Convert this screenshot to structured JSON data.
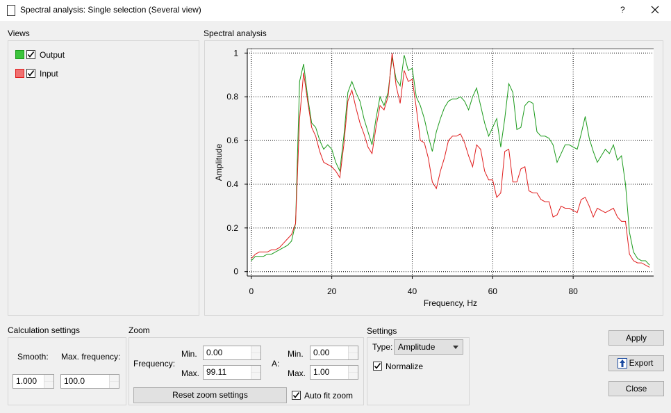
{
  "window": {
    "title": "Spectral analysis: Single selection (Several view)",
    "help": "?"
  },
  "views": {
    "title": "Views",
    "checked": [
      true,
      true
    ]
  },
  "chart_data": {
    "type": "line",
    "title": "Spectral analysis",
    "x_label": "Frequency, Hz",
    "y_label": "Amplitude",
    "x": [
      0,
      1,
      2,
      3,
      4,
      5,
      6,
      7,
      8,
      9,
      10,
      11,
      12,
      13,
      14,
      15,
      16,
      17,
      18,
      19,
      20,
      21,
      22,
      23,
      24,
      25,
      26,
      27,
      28,
      29,
      30,
      31,
      32,
      33,
      34,
      35,
      36,
      37,
      38,
      39,
      40,
      41,
      42,
      43,
      44,
      45,
      46,
      47,
      48,
      49,
      50,
      51,
      52,
      53,
      54,
      55,
      56,
      57,
      58,
      59,
      60,
      61,
      62,
      63,
      64,
      65,
      66,
      67,
      68,
      69,
      70,
      71,
      72,
      73,
      74,
      75,
      76,
      77,
      78,
      79,
      80,
      81,
      82,
      83,
      84,
      85,
      86,
      87,
      88,
      89,
      90,
      91,
      92,
      93,
      94,
      95,
      96,
      97,
      98,
      99
    ],
    "series": [
      {
        "name": "Output",
        "color": "#1a9a1a",
        "swatch": "#3cc43c",
        "values": [
          0.05,
          0.07,
          0.07,
          0.07,
          0.08,
          0.08,
          0.09,
          0.1,
          0.11,
          0.12,
          0.14,
          0.22,
          0.87,
          0.95,
          0.8,
          0.68,
          0.66,
          0.6,
          0.56,
          0.58,
          0.56,
          0.5,
          0.46,
          0.62,
          0.82,
          0.87,
          0.82,
          0.78,
          0.7,
          0.64,
          0.58,
          0.7,
          0.8,
          0.76,
          0.82,
          0.98,
          0.88,
          0.85,
          0.99,
          0.92,
          0.93,
          0.8,
          0.76,
          0.7,
          0.62,
          0.55,
          0.64,
          0.7,
          0.75,
          0.78,
          0.79,
          0.79,
          0.8,
          0.78,
          0.74,
          0.8,
          0.84,
          0.76,
          0.68,
          0.62,
          0.66,
          0.7,
          0.57,
          0.7,
          0.86,
          0.82,
          0.65,
          0.66,
          0.76,
          0.78,
          0.77,
          0.64,
          0.62,
          0.62,
          0.61,
          0.58,
          0.5,
          0.54,
          0.58,
          0.58,
          0.57,
          0.56,
          0.63,
          0.71,
          0.61,
          0.55,
          0.5,
          0.53,
          0.56,
          0.54,
          0.58,
          0.51,
          0.53,
          0.4,
          0.18,
          0.09,
          0.06,
          0.05,
          0.05,
          0.03
        ]
      },
      {
        "name": "Input",
        "color": "#e01c1c",
        "swatch": "#f07070",
        "values": [
          0.06,
          0.08,
          0.09,
          0.09,
          0.09,
          0.1,
          0.1,
          0.11,
          0.13,
          0.15,
          0.17,
          0.22,
          0.7,
          0.91,
          0.78,
          0.66,
          0.62,
          0.55,
          0.5,
          0.49,
          0.48,
          0.46,
          0.43,
          0.58,
          0.78,
          0.83,
          0.75,
          0.68,
          0.63,
          0.57,
          0.54,
          0.66,
          0.76,
          0.74,
          0.8,
          1.0,
          0.85,
          0.77,
          0.92,
          0.87,
          0.88,
          0.75,
          0.6,
          0.59,
          0.52,
          0.41,
          0.38,
          0.46,
          0.52,
          0.6,
          0.62,
          0.62,
          0.63,
          0.59,
          0.53,
          0.48,
          0.58,
          0.56,
          0.46,
          0.42,
          0.42,
          0.34,
          0.36,
          0.55,
          0.56,
          0.41,
          0.41,
          0.47,
          0.48,
          0.37,
          0.36,
          0.36,
          0.33,
          0.32,
          0.32,
          0.25,
          0.26,
          0.3,
          0.29,
          0.29,
          0.28,
          0.27,
          0.33,
          0.34,
          0.3,
          0.25,
          0.29,
          0.28,
          0.27,
          0.28,
          0.29,
          0.25,
          0.23,
          0.23,
          0.08,
          0.05,
          0.04,
          0.04,
          0.03,
          0.02
        ]
      }
    ],
    "xlim": [
      -1,
      100
    ],
    "ylim": [
      -0.02,
      1.02
    ],
    "xticks": [
      0,
      20,
      40,
      60,
      80
    ],
    "yticks": [
      0,
      0.2,
      0.4,
      0.6,
      0.8,
      1
    ],
    "grid": true
  },
  "calculation": {
    "title": "Calculation settings",
    "smooth_label": "Smooth:",
    "smooth": "1.000",
    "max_freq_label": "Max. frequency:",
    "max_freq": "100.0"
  },
  "zoom": {
    "title": "Zoom",
    "frequency_label": "Frequency:",
    "a_label": "A:",
    "min_label": "Min.",
    "max_label": "Max.",
    "freq_min": "0.00",
    "freq_max": "99.11",
    "a_min": "0.00",
    "a_max": "1.00",
    "reset": "Reset zoom settings",
    "auto_fit": "Auto fit zoom",
    "auto_fit_checked": true
  },
  "settings": {
    "title": "Settings",
    "type_label": "Type:",
    "type": "Amplitude",
    "normalize": "Normalize",
    "normalize_checked": true
  },
  "buttons": {
    "apply": "Apply",
    "export": "Export",
    "close": "Close"
  }
}
